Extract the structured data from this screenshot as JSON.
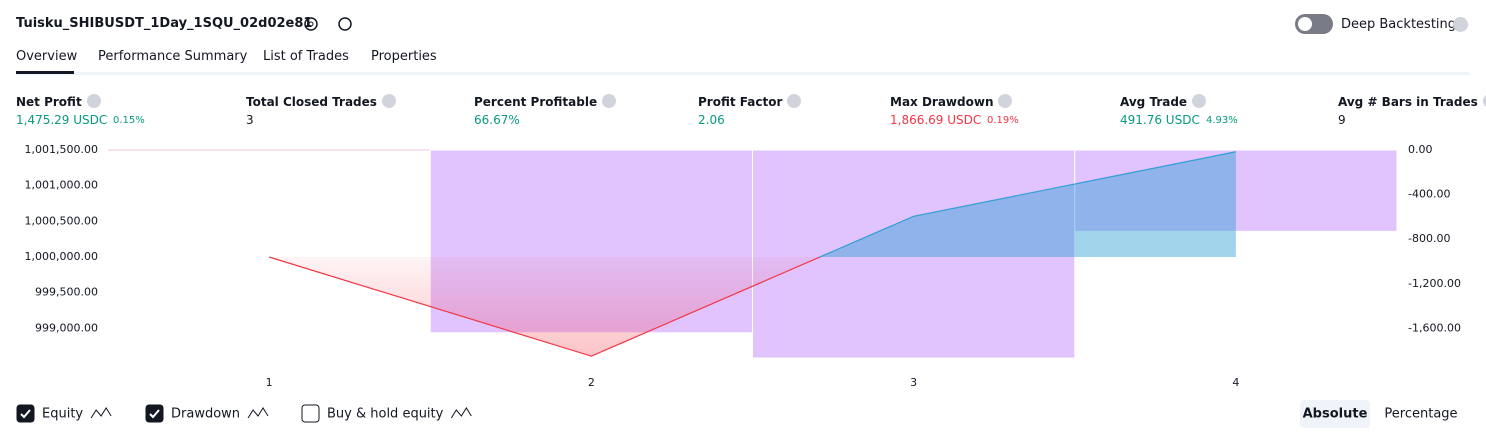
{
  "header": {
    "title": "Tuisku_SHIBUSDT_1Day_1SQU_02d02e81",
    "toggle_label": "Deep Backtesting"
  },
  "tabs": [
    "Overview",
    "Performance Summary",
    "List of Trades",
    "Properties"
  ],
  "metrics": [
    {
      "label": "Net Profit",
      "value": "1,475.29 USDC",
      "extra": "0.15%",
      "tone": "pos"
    },
    {
      "label": "Total Closed Trades",
      "value": "3",
      "tone": "neutral"
    },
    {
      "label": "Percent Profitable",
      "value": "66.67%",
      "tone": "pos"
    },
    {
      "label": "Profit Factor",
      "value": "2.06",
      "tone": "pos"
    },
    {
      "label": "Max Drawdown",
      "value": "1,866.69 USDC",
      "extra": "0.19%",
      "tone": "neg"
    },
    {
      "label": "Avg Trade",
      "value": "491.76 USDC",
      "extra": "4.93%",
      "tone": "pos"
    },
    {
      "label": "Avg # Bars in Trades",
      "value": "9",
      "tone": "neutral"
    }
  ],
  "chart_data": {
    "type": "line",
    "x": [
      1,
      2,
      3,
      4
    ],
    "xlim": [
      0.5,
      4.5
    ],
    "xticks": [
      1,
      2,
      3,
      4
    ],
    "ylim": [
      998500,
      1001500
    ],
    "yticks": [
      {
        "value": 1001500,
        "label": "1,001,500.00"
      },
      {
        "value": 1001000,
        "label": "1,001,000.00"
      },
      {
        "value": 1000500,
        "label": "1,000,500.00"
      },
      {
        "value": 1000000,
        "label": "1,000,000.00"
      },
      {
        "value": 999500,
        "label": "999,500.00"
      },
      {
        "value": 999000,
        "label": "999,000.00"
      }
    ],
    "y2lim": [
      -1920,
      0
    ],
    "y2ticks": [
      {
        "value": 0,
        "label": "0.00"
      },
      {
        "value": -400,
        "label": "-400.00"
      },
      {
        "value": -800,
        "label": "-800.00"
      },
      {
        "value": -1200,
        "label": "-1,200.00"
      },
      {
        "value": -1600,
        "label": "-1,600.00"
      }
    ],
    "series": [
      {
        "name": "Equity",
        "type": "line",
        "color": "#2f9fd6",
        "values": [
          1000000,
          998610,
          1000570,
          1001475.29
        ]
      },
      {
        "name": "Drawdown",
        "type": "bar",
        "axis": "y2",
        "color": "#e1c3fd",
        "values": [
          null,
          -1640,
          -1866.69,
          -730
        ]
      }
    ]
  },
  "legend_extra": "Buy & hold equity",
  "modes": [
    "Absolute",
    "Percentage"
  ]
}
